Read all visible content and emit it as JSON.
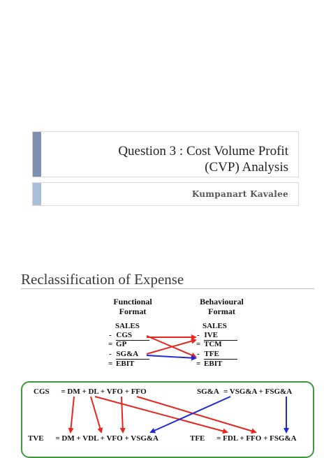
{
  "slide1": {
    "title_line1": "Question 3  :  Cost Volume Profit",
    "title_line2": "(CVP) Analysis",
    "author": "Kumpanart  Kavalee"
  },
  "slide2": {
    "heading": "Reclassification of Expense",
    "functional": {
      "header_line1": "Functional",
      "header_line2": "Format",
      "lines": [
        "SALES",
        "CGS",
        "GP",
        "SG&A",
        "EBIT"
      ],
      "prefixes": [
        "",
        "-",
        "=",
        "-",
        "="
      ]
    },
    "behavioural": {
      "header_line1": "Behavioural",
      "header_line2": "Format",
      "lines": [
        "SALES",
        "IVE",
        "TCM",
        "TFE",
        "EBIT"
      ],
      "prefixes": [
        "",
        "-",
        "=",
        "-",
        "="
      ]
    },
    "equations": {
      "cgs_label": "CGS",
      "cgs_rhs": "= DM + DL + VFO + FFO",
      "sga_label": "SG&A",
      "sga_rhs": "= VSG&A + FSG&A",
      "tve_label": "TVE",
      "tve_rhs": "= DM + VDL + VFO + VSG&A",
      "tfe_label": "TFE",
      "tfe_rhs": "= FDL + FFO + FSG&A"
    },
    "colors": {
      "red_arrow": "#e8261f",
      "blue_arrow": "#1f2ad6",
      "green_box": "#3c9a3c"
    }
  }
}
